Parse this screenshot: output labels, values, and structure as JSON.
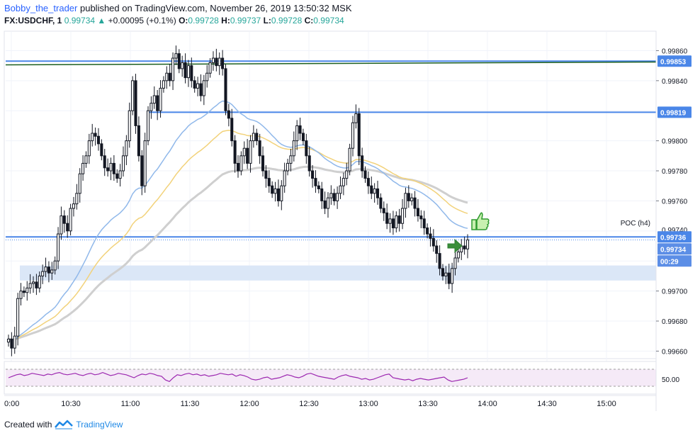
{
  "header": {
    "user": "Bobby_the_trader",
    "published": "published on TradingView.com, November 26, 2019 13:50:32 MSK",
    "symbol": "FX:USDCHF, 1",
    "price": "0.99734",
    "change": "+0.00095 (+0.1%)",
    "o_label": "O:",
    "o": "0.99728",
    "h_label": "H:",
    "h": "0.99737",
    "l_label": "L:",
    "l": "0.99728",
    "c_label": "C:",
    "c": "0.99734"
  },
  "footer": {
    "created": "Created with",
    "brand": "TradingView"
  },
  "colors": {
    "hline": "#4a86e8",
    "green_line": "#1b5e20",
    "ma_blue": "#90b8ea",
    "ma_yellow": "#f2d27a",
    "ma_gray": "#cfcfcf",
    "rsi": "#9c27b0",
    "zone": "#dbe7f7"
  },
  "price_axis": {
    "ticks": [
      "0.99860",
      "0.99840",
      "0.99800",
      "0.99780",
      "0.99760",
      "0.99700",
      "0.99680",
      "0.99660"
    ],
    "ticks_partial": [
      "0.99740",
      "0"
    ],
    "badges": [
      {
        "label": "0.99853",
        "type": "line"
      },
      {
        "label": "0.99819",
        "type": "line"
      },
      {
        "label": "0.99736",
        "type": "line"
      },
      {
        "label": "0.99734",
        "type": "price"
      },
      {
        "label": "00:29",
        "type": "timer"
      }
    ],
    "poc_label": "POC (h4)"
  },
  "rsi_axis": {
    "tick": "50.00"
  },
  "time_axis": {
    "ticks": [
      "0:00",
      "10:30",
      "11:00",
      "11:30",
      "12:00",
      "12:30",
      "13:00",
      "13:30",
      "14:00",
      "14:30",
      "15:00"
    ]
  },
  "chart_data": {
    "type": "candlestick",
    "ylim": [
      0.99655,
      0.99872
    ],
    "horizontal_lines": [
      0.99853,
      0.99851,
      0.99819,
      0.99736
    ],
    "zone": [
      0.99707,
      0.99717
    ],
    "closes": [
      0.99668,
      0.99662,
      0.9967,
      0.99695,
      0.997,
      0.99699,
      0.99702,
      0.99705,
      0.99706,
      0.99702,
      0.9971,
      0.99713,
      0.99716,
      0.99712,
      0.99714,
      0.9972,
      0.99738,
      0.9975,
      0.99745,
      0.9974,
      0.99755,
      0.99758,
      0.99765,
      0.99778,
      0.99785,
      0.9979,
      0.998,
      0.99805,
      0.99803,
      0.99798,
      0.9979,
      0.99782,
      0.9978,
      0.99785,
      0.99778,
      0.99775,
      0.9978,
      0.9979,
      0.998,
      0.9982,
      0.9984,
      0.9981,
      0.9979,
      0.9977,
      0.998,
      0.9982,
      0.99825,
      0.9983,
      0.9982,
      0.99835,
      0.9984,
      0.99845,
      0.9984,
      0.99855,
      0.99858,
      0.99848,
      0.99852,
      0.99842,
      0.9985,
      0.9984,
      0.99835,
      0.99838,
      0.9983,
      0.9984,
      0.99845,
      0.99852,
      0.99855,
      0.9985,
      0.99855,
      0.99848,
      0.9982,
      0.99815,
      0.998,
      0.99785,
      0.9978,
      0.9979,
      0.99795,
      0.99785,
      0.998,
      0.99805,
      0.998,
      0.9979,
      0.9978,
      0.99775,
      0.9977,
      0.99765,
      0.99768,
      0.9976,
      0.9977,
      0.9978,
      0.99785,
      0.9979,
      0.998,
      0.9981,
      0.99805,
      0.998,
      0.9979,
      0.9978,
      0.99775,
      0.9977,
      0.99768,
      0.9976,
      0.99755,
      0.99762,
      0.99765,
      0.9976,
      0.99765,
      0.9977,
      0.99775,
      0.9978,
      0.99795,
      0.99812,
      0.99818,
      0.9979,
      0.9978,
      0.99775,
      0.9977,
      0.99765,
      0.99768,
      0.99762,
      0.99755,
      0.99752,
      0.99745,
      0.99748,
      0.99742,
      0.9975,
      0.99745,
      0.99755,
      0.99765,
      0.9976,
      0.99762,
      0.99755,
      0.9975,
      0.99748,
      0.99742,
      0.99738,
      0.99735,
      0.9973,
      0.99725,
      0.99715,
      0.9971,
      0.99712,
      0.99705,
      0.99715,
      0.99722,
      0.99726,
      0.9973,
      0.99728,
      0.99734
    ],
    "rsi": [
      50,
      52,
      54,
      55,
      53,
      54,
      56,
      55,
      54,
      53,
      55,
      54,
      56,
      57,
      55,
      54,
      55,
      56,
      54,
      53,
      55,
      56,
      54,
      55,
      57,
      55,
      53,
      54,
      56,
      55,
      54,
      52,
      50,
      53,
      55,
      54,
      56,
      55,
      53,
      52,
      47,
      45,
      50,
      54,
      53,
      55,
      56,
      54,
      55,
      53,
      54,
      52,
      53,
      54,
      56,
      55,
      54,
      55,
      52,
      54,
      53,
      51,
      48,
      47,
      48,
      50,
      51,
      48,
      49,
      50,
      52,
      54,
      53,
      51,
      50,
      52,
      55,
      56,
      54,
      52,
      51,
      50,
      49,
      48,
      51,
      53,
      54,
      52,
      51,
      50,
      48,
      49,
      47,
      48,
      50,
      52,
      54,
      55,
      50,
      49,
      48,
      47,
      48,
      46,
      48,
      49,
      48,
      47,
      48,
      49,
      50,
      51,
      47,
      45,
      46,
      47,
      48,
      50
    ],
    "rsi_ylim": [
      30,
      70
    ]
  }
}
